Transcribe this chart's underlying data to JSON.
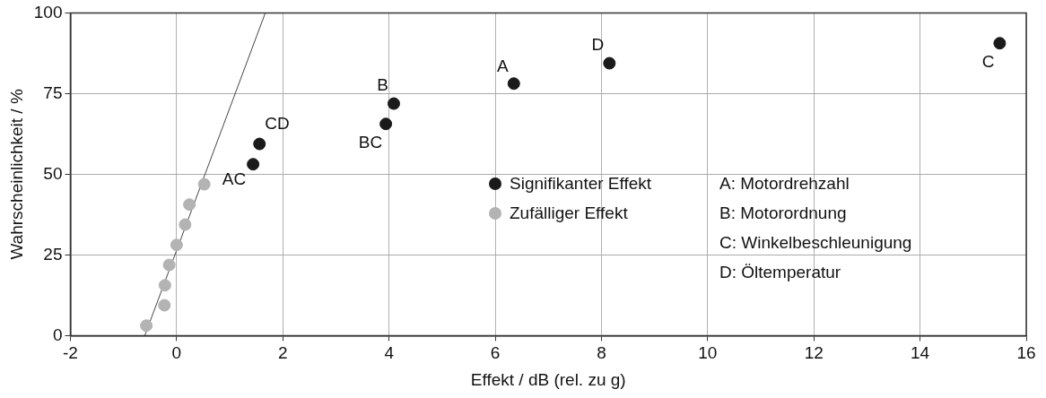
{
  "chart_data": {
    "type": "scatter",
    "xlabel": "Effekt / dB (rel. zu g)",
    "ylabel": "Wahrscheinlichkeit / %",
    "xlim": [
      -2,
      16
    ],
    "xticks": [
      -2,
      0,
      2,
      4,
      6,
      8,
      10,
      12,
      14,
      16
    ],
    "ylim": [
      0,
      100
    ],
    "yticks": [
      0,
      25,
      50,
      75,
      100
    ],
    "grid": true,
    "legend": "center",
    "marker": "circle",
    "series": [
      {
        "name": "Signifikanter Effekt",
        "color": "#1a1a1a",
        "x": [
          1.44,
          1.56,
          3.94,
          4.09,
          6.35,
          8.15,
          15.5
        ],
        "values": [
          53.1,
          59.4,
          65.6,
          71.9,
          78.1,
          84.4,
          90.6
        ]
      },
      {
        "name": "Zufälliger Effekt",
        "color": "#b3b3b3",
        "x": [
          -0.57,
          -0.23,
          -0.22,
          -0.14,
          0,
          0.16,
          0.24,
          0.52
        ],
        "values": [
          3.1,
          9.4,
          15.6,
          21.9,
          28.1,
          34.4,
          40.6,
          46.9
        ]
      },
      {
        "type": "line",
        "color": "#444444",
        "marker": "none",
        "x": [
          -0.6,
          1.67
        ],
        "values": [
          0,
          100
        ]
      }
    ],
    "annotations": [
      {
        "text": "AC",
        "x": 1.44,
        "y": 53.1
      },
      {
        "text": "CD",
        "x": 1.56,
        "y": 59.4
      },
      {
        "text": "BC",
        "x": 3.94,
        "y": 65.6
      },
      {
        "text": "B",
        "x": 4.09,
        "y": 71.9
      },
      {
        "text": "A",
        "x": 6.35,
        "y": 78.1
      },
      {
        "text": "D",
        "x": 8.15,
        "y": 84.4
      },
      {
        "text": "C",
        "x": 15.5,
        "y": 90.6
      },
      "A: Motordrehzahl",
      "B: Motorordnung",
      "C: Winkelbeschleunigung",
      "D: Öltemperatur"
    ]
  }
}
